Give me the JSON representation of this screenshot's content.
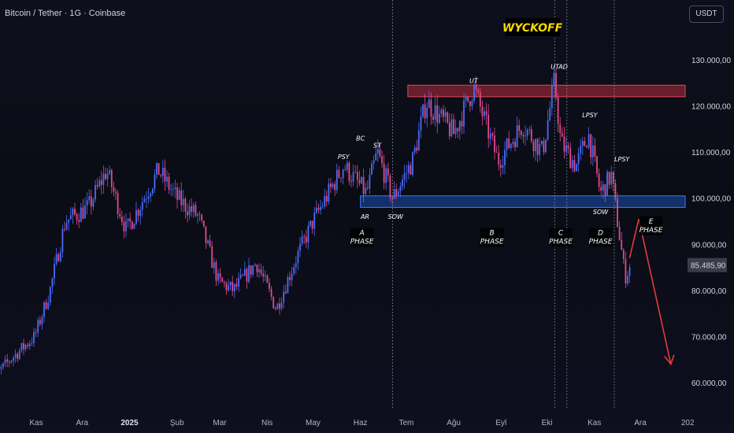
{
  "symbol_title": "Bitcoin / Tether · 1G · Coinbase",
  "quote_currency": "USDT",
  "headline": "WYCKOFF",
  "colors": {
    "up": "#4a6cf7",
    "down": "#e04a8c",
    "resistance_fill": "#b52b3d",
    "support_fill": "#1e4fb0",
    "projection": "#e23b3b",
    "headline_bg": "#000000",
    "headline_text": "#f5d800"
  },
  "chart_data": {
    "type": "candlestick",
    "title": "Bitcoin / Tether · 1G · Coinbase",
    "y_scale": "linear",
    "y_range": [
      54000,
      141000
    ],
    "y_tick_labels": [
      "130.000,00",
      "120.000,00",
      "110.000,00",
      "100.000,00",
      "90.000,00",
      "80.000,00",
      "70.000,00",
      "60.000,00"
    ],
    "y_tick_values": [
      130000,
      120000,
      110000,
      100000,
      90000,
      80000,
      70000,
      60000
    ],
    "x_tick_labels": [
      "Kas",
      "Ara",
      "2025",
      "Şub",
      "Mar",
      "Nis",
      "May",
      "Haz",
      "Tem",
      "Ağu",
      "Eyl",
      "Eki",
      "Kas",
      "Ara",
      "202"
    ],
    "x_tick_months": [
      "2024-11",
      "2024-12",
      "2025-01",
      "2025-02",
      "2025-03",
      "2025-04",
      "2025-05",
      "2025-06",
      "2025-07",
      "2025-08",
      "2025-09",
      "2025-10",
      "2025-11",
      "2025-12",
      "2026-01"
    ],
    "last_price_label": "85.485,90",
    "last_price": 85485.9,
    "price_path": [
      [
        "2024-10-01",
        60000
      ],
      [
        "2024-10-15",
        65000
      ],
      [
        "2024-10-31",
        70000
      ],
      [
        "2024-11-10",
        80000
      ],
      [
        "2024-11-20",
        95000
      ],
      [
        "2024-12-05",
        98000
      ],
      [
        "2024-12-17",
        106000
      ],
      [
        "2024-12-30",
        93000
      ],
      [
        "2025-01-20",
        106000
      ],
      [
        "2025-02-01",
        100000
      ],
      [
        "2025-02-15",
        96000
      ],
      [
        "2025-02-28",
        82000
      ],
      [
        "2025-03-10",
        80000
      ],
      [
        "2025-03-25",
        86000
      ],
      [
        "2025-04-07",
        76000
      ],
      [
        "2025-04-20",
        87000
      ],
      [
        "2025-05-01",
        95000
      ],
      [
        "2025-05-21",
        107000
      ],
      [
        "2025-06-05",
        101000
      ],
      [
        "2025-06-12",
        110000
      ],
      [
        "2025-06-22",
        100000
      ],
      [
        "2025-07-05",
        108000
      ],
      [
        "2025-07-14",
        121000
      ],
      [
        "2025-08-01",
        114000
      ],
      [
        "2025-08-14",
        124000
      ],
      [
        "2025-08-30",
        108000
      ],
      [
        "2025-09-15",
        116000
      ],
      [
        "2025-09-28",
        110000
      ],
      [
        "2025-10-06",
        125500
      ],
      [
        "2025-10-10",
        112000
      ],
      [
        "2025-10-20",
        107000
      ],
      [
        "2025-10-28",
        114000
      ],
      [
        "2025-11-05",
        101000
      ],
      [
        "2025-11-12",
        105000
      ],
      [
        "2025-11-21",
        83000
      ],
      [
        "2025-11-25",
        85485.9
      ]
    ],
    "zones": [
      {
        "type": "resistance",
        "from": "2025-07-02",
        "to": "2026-01-10",
        "low": 122000,
        "high": 124500
      },
      {
        "type": "support",
        "from": "2025-06-01",
        "to": "2026-01-10",
        "low": 98000,
        "high": 100500
      }
    ],
    "vertical_markers": [
      "2025-06-22",
      "2025-10-06",
      "2025-10-14",
      "2025-11-14"
    ],
    "annotations": [
      {
        "text": "PSY",
        "date": "2025-05-21",
        "price": 108500
      },
      {
        "text": "BC",
        "date": "2025-06-01",
        "price": 112500
      },
      {
        "text": "AR",
        "date": "2025-06-04",
        "price": 95500
      },
      {
        "text": "ST",
        "date": "2025-06-12",
        "price": 111000
      },
      {
        "text": "SOW",
        "date": "2025-06-24",
        "price": 95500
      },
      {
        "text": "UT",
        "date": "2025-08-14",
        "price": 125000
      },
      {
        "text": "UTAD",
        "date": "2025-10-09",
        "price": 128000
      },
      {
        "text": "LPSY",
        "date": "2025-10-29",
        "price": 117500
      },
      {
        "text": "LPSY",
        "date": "2025-11-19",
        "price": 108000
      },
      {
        "text": "SOW",
        "date": "2025-11-05",
        "price": 96500
      }
    ],
    "phases": [
      {
        "letter": "A",
        "label": "PHASE",
        "date": "2025-06-02",
        "price": 92000
      },
      {
        "letter": "B",
        "label": "PHASE",
        "date": "2025-08-26",
        "price": 92000
      },
      {
        "letter": "C",
        "label": "PHASE",
        "date": "2025-10-10",
        "price": 92000
      },
      {
        "letter": "D",
        "label": "PHASE",
        "date": "2025-11-05",
        "price": 92000
      },
      {
        "letter": "E",
        "label": "PHASE",
        "date": "2025-12-08",
        "price": 94500
      }
    ],
    "projection": [
      [
        "2025-11-24",
        87000
      ],
      [
        "2025-11-30",
        95500
      ],
      [
        "2025-12-21",
        64000
      ]
    ]
  }
}
